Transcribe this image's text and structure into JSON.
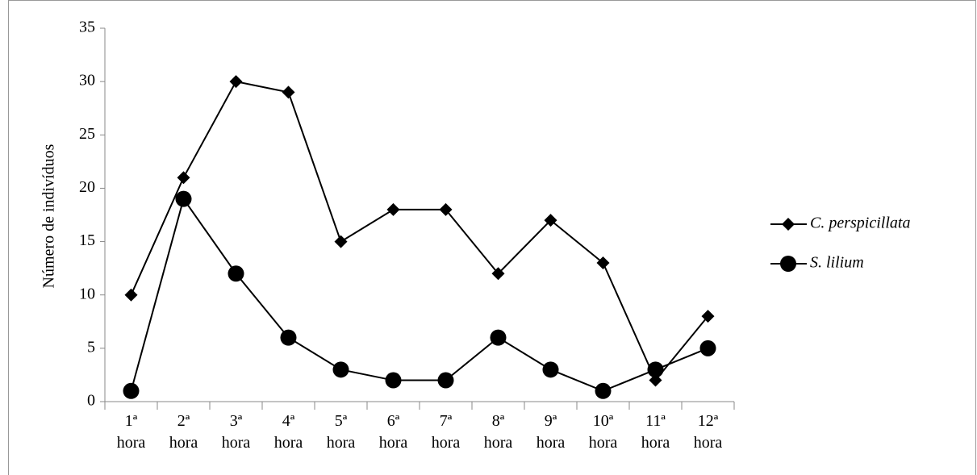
{
  "chart_data": {
    "type": "line",
    "y_label": "Número de indivíduos",
    "categories": [
      "1ª hora",
      "2ª hora",
      "3ª hora",
      "4ª hora",
      "5ª hora",
      "6ª hora",
      "7ª hora",
      "8ª hora",
      "9ª hora",
      "10ª hora",
      "11ª hora",
      "12ª hora"
    ],
    "series": [
      {
        "name": "C. perspicillata",
        "color": "#000000",
        "marker": "diamond",
        "values": [
          10,
          21,
          30,
          29,
          15,
          18,
          18,
          12,
          17,
          13,
          2,
          8
        ]
      },
      {
        "name": "S. lilium",
        "color": "#000000",
        "marker": "circle",
        "values": [
          1,
          19,
          12,
          6,
          3,
          2,
          2,
          6,
          3,
          1,
          3,
          5
        ]
      }
    ],
    "ylim": [
      0,
      35
    ],
    "yticks": [
      0,
      5,
      10,
      15,
      20,
      25,
      30,
      35
    ],
    "grid": false,
    "legend": "right"
  }
}
